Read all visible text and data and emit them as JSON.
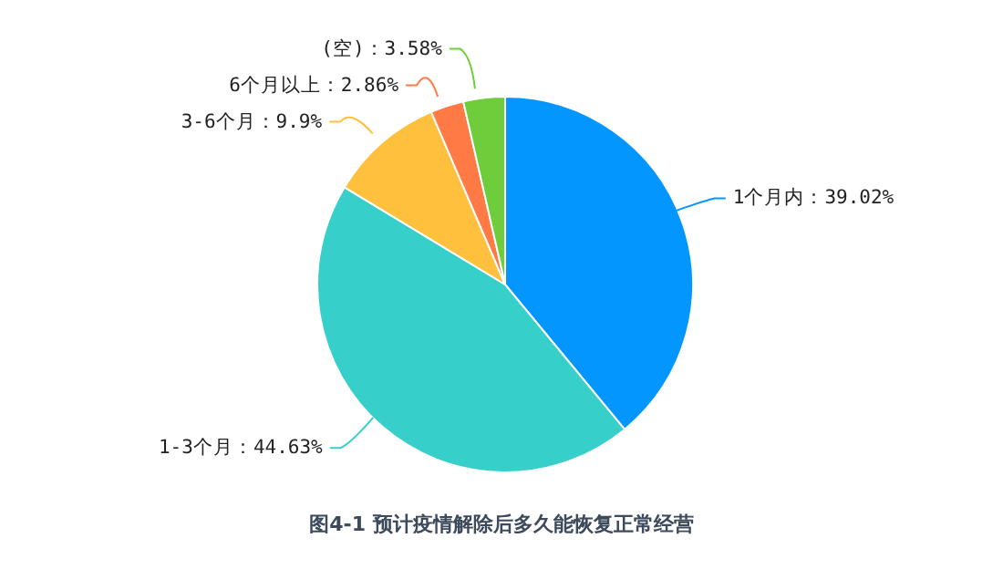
{
  "chart_data": {
    "type": "pie",
    "title": "图4-1 预计疫情解除后多久能恢复正常经营",
    "categories": [
      "1个月内",
      "1-3个月",
      "3-6个月",
      "6个月以上",
      "(空)"
    ],
    "values": [
      39.02,
      44.63,
      9.9,
      2.86,
      3.58
    ],
    "value_labels": [
      "39.02%",
      "44.63%",
      "9.9%",
      "2.86%",
      "3.58%"
    ],
    "colors": [
      "#0396ff",
      "#36cfc9",
      "#ffc13d",
      "#ff7a45",
      "#6fcd3c"
    ]
  }
}
